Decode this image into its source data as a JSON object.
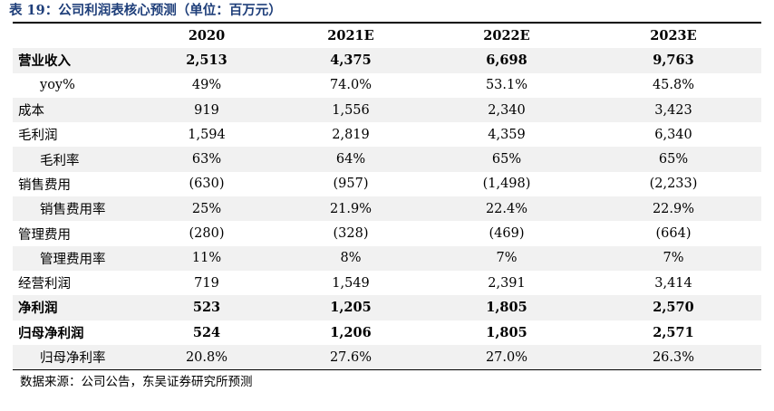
{
  "caption": "表 19：公司利润表核心预测（单位：百万元）",
  "table": {
    "header": [
      "",
      "2020",
      "2021E",
      "2022E",
      "2023E"
    ],
    "rows": [
      {
        "label": "营业收入",
        "values": [
          "2,513",
          "4,375",
          "6,698",
          "9,763"
        ],
        "bold": true,
        "indent": false
      },
      {
        "label": "yoy%",
        "values": [
          "49%",
          "74.0%",
          "53.1%",
          "45.8%"
        ],
        "bold": false,
        "indent": true
      },
      {
        "label": "成本",
        "values": [
          "919",
          "1,556",
          "2,340",
          "3,423"
        ],
        "bold": false,
        "indent": false
      },
      {
        "label": "毛利润",
        "values": [
          "1,594",
          "2,819",
          "4,359",
          "6,340"
        ],
        "bold": false,
        "indent": false
      },
      {
        "label": "毛利率",
        "values": [
          "63%",
          "64%",
          "65%",
          "65%"
        ],
        "bold": false,
        "indent": true
      },
      {
        "label": "销售费用",
        "values": [
          "(630)",
          "(957)",
          "(1,498)",
          "(2,233)"
        ],
        "bold": false,
        "indent": false
      },
      {
        "label": "销售费用率",
        "values": [
          "25%",
          "21.9%",
          "22.4%",
          "22.9%"
        ],
        "bold": false,
        "indent": true
      },
      {
        "label": "管理费用",
        "values": [
          "(280)",
          "(328)",
          "(469)",
          "(664)"
        ],
        "bold": false,
        "indent": false
      },
      {
        "label": "管理费用率",
        "values": [
          "11%",
          "8%",
          "7%",
          "7%"
        ],
        "bold": false,
        "indent": true
      },
      {
        "label": "经营利润",
        "values": [
          "719",
          "1,549",
          "2,391",
          "3,414"
        ],
        "bold": false,
        "indent": false
      },
      {
        "label": "净利润",
        "values": [
          "523",
          "1,205",
          "1,805",
          "2,570"
        ],
        "bold": true,
        "indent": false
      },
      {
        "label": "归母净利润",
        "values": [
          "524",
          "1,206",
          "1,805",
          "2,571"
        ],
        "bold": true,
        "indent": false
      },
      {
        "label": "归母净利率",
        "values": [
          "20.8%",
          "27.6%",
          "27.0%",
          "26.3%"
        ],
        "bold": false,
        "indent": true
      }
    ]
  },
  "footnote": "数据来源：公司公告，东吴证券研究所预测"
}
